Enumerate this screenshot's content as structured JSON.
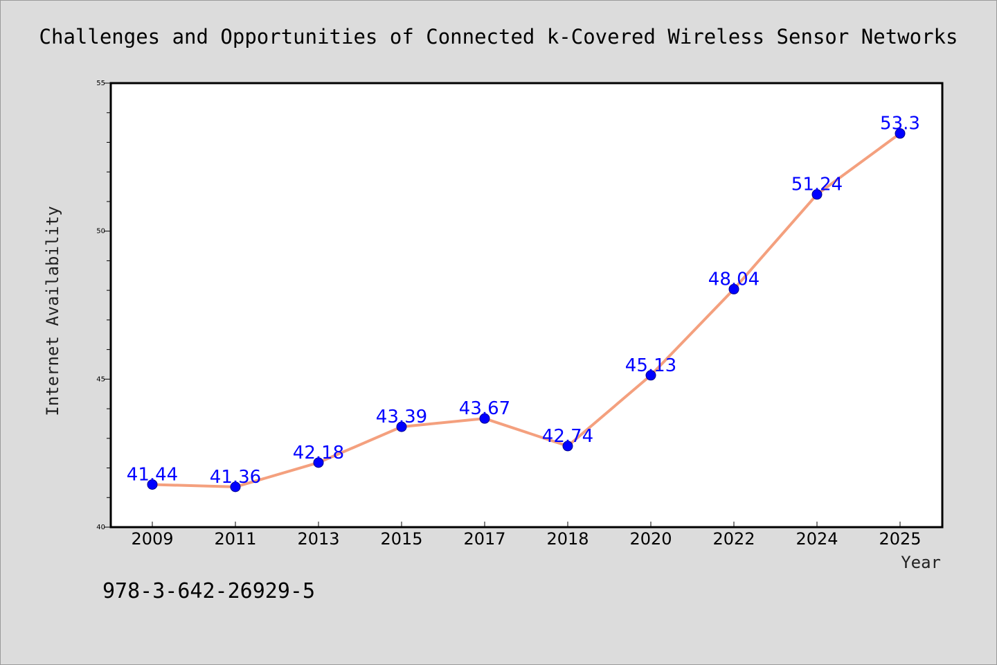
{
  "annotation": "978-3-642-26929-5",
  "colors": {
    "background": "#dcdcdc",
    "line": "#f4a07e",
    "marker": "#0000ff",
    "label": "#0000ff"
  },
  "chart_data": {
    "type": "line",
    "title": "Challenges and Opportunities of Connected k-Covered Wireless Sensor Networks",
    "xlabel": "Year",
    "ylabel": "Internet Availability",
    "categories": [
      "2009",
      "2011",
      "2013",
      "2015",
      "2017",
      "2018",
      "2020",
      "2022",
      "2024",
      "2025"
    ],
    "series": [
      {
        "values": [
          41.44,
          41.36,
          42.18,
          43.39,
          43.67,
          42.74,
          45.13,
          48.04,
          51.24,
          53.3
        ],
        "labels": [
          "41.44",
          "41.36",
          "42.18",
          "43.39",
          "43.67",
          "42.74",
          "45.13",
          "48.04",
          "51.24",
          "53.3"
        ]
      }
    ],
    "ylim": [
      40,
      55
    ],
    "yticks": [
      40,
      45,
      50,
      55
    ],
    "grid": false,
    "legend": "none",
    "marker": "circle"
  }
}
